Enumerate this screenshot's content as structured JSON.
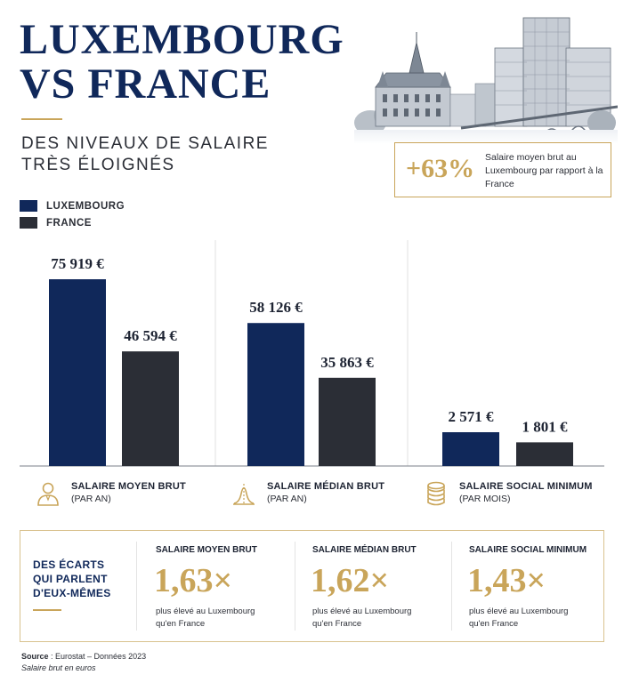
{
  "header": {
    "title_line1": "LUXEMBOURG",
    "title_line2": "VS FRANCE",
    "subtitle_line1": "DES NIVEAUX DE SALAIRE",
    "subtitle_line2": "TRÈS ÉLOIGNÉS"
  },
  "callout": {
    "value": "+63%",
    "text": "Salaire moyen brut au Luxembourg par rapport à la France"
  },
  "legend": [
    {
      "label": "LUXEMBOURG",
      "color": "#10285a"
    },
    {
      "label": "FRANCE",
      "color": "#2b2e36"
    }
  ],
  "chart_data": {
    "type": "bar",
    "categories": [
      "SALAIRE MOYEN BRUT",
      "SALAIRE MÉDIAN BRUT",
      "SALAIRE SOCIAL MINIMUM"
    ],
    "category_subtitles": [
      "(PAR AN)",
      "(PAR AN)",
      "(PAR MOIS)"
    ],
    "series": [
      {
        "name": "LUXEMBOURG",
        "color": "#10285a",
        "values": [
          75919,
          58126,
          2571
        ],
        "labels": [
          "75 919 €",
          "58 126 €",
          "2 571 €"
        ]
      },
      {
        "name": "FRANCE",
        "color": "#2b2e36",
        "values": [
          46594,
          35863,
          1801
        ],
        "labels": [
          "46 594 €",
          "35 863 €",
          "1 801 €"
        ]
      }
    ]
  },
  "category_icons": [
    "person-icon",
    "bell-curve-icon",
    "coin-stack-icon"
  ],
  "gaps": {
    "heading_line1": "DES ÉCARTS",
    "heading_line2": "QUI PARLENT",
    "heading_line3": "D'EUX-MÊMES",
    "items": [
      {
        "title": "SALAIRE MOYEN BRUT",
        "ratio": "1,63×",
        "desc_line1": "plus élevé au Luxembourg",
        "desc_line2": "qu'en France"
      },
      {
        "title": "SALAIRE MÉDIAN BRUT",
        "ratio": "1,62×",
        "desc_line1": "plus élevé au Luxembourg",
        "desc_line2": "qu'en France"
      },
      {
        "title": "SALAIRE SOCIAL MINIMUM",
        "ratio": "1,43×",
        "desc_line1": "plus élevé au Luxembourg",
        "desc_line2": "qu'en France"
      }
    ]
  },
  "footer": {
    "source_label": "Source",
    "source_text": " : Eurostat – Données 2023",
    "note": "Salaire brut en euros"
  },
  "colors": {
    "navy": "#10285a",
    "dark": "#2b2e36",
    "gold": "#c9a55a"
  }
}
